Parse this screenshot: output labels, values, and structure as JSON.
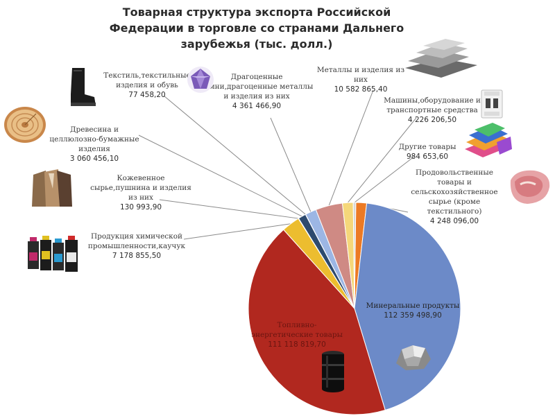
{
  "chart_data": {
    "type": "pie",
    "title": "Товарная структура экспорта Российской Федерации в торговле со странами Дальнего зарубежья (тыс. долл.)",
    "slices": [
      {
        "label": "Продовольственные товары и сельскохозяйственное сырье (кроме текстильного)",
        "value": 4248096.0,
        "value_text": "4 248 096,00",
        "color": "#ec7a24"
      },
      {
        "label": "Минеральные продукты",
        "value": 112359498.9,
        "value_text": "112 359 498,90",
        "color": "#6c8ac8"
      },
      {
        "label": "Топливно-энергетические товары",
        "value": 111118819.7,
        "value_text": "111 118 819,70",
        "color": "#b1281f"
      },
      {
        "label": "Продукция химической промышленности,каучук",
        "value": 7178855.5,
        "value_text": "7 178 855,50",
        "color": "#ecbd2f"
      },
      {
        "label": "Кожевенное сырье,пушнина и изделия из них",
        "value": 130993.9,
        "value_text": "130 993,90",
        "color": "#5f5f5f"
      },
      {
        "label": "Древесина и целлюлозно-бумажные изделия",
        "value": 3060456.1,
        "value_text": "3 060 456,10",
        "color": "#2d4a6e"
      },
      {
        "label": "Текстиль,текстильные изделия и обувь",
        "value": 77458.2,
        "value_text": "77 458,20",
        "color": "#7a2a22"
      },
      {
        "label": "Драгоценные камни,драгоценные металлы и изделия из них",
        "value": 4361466.9,
        "value_text": "4 361 466,90",
        "color": "#9cb6e4"
      },
      {
        "label": "Металлы и изделия из них",
        "value": 10582865.4,
        "value_text": "10 582 865,40",
        "color": "#cf8a84"
      },
      {
        "label": "Машины,оборудование и транспортные средства",
        "value": 4226206.5,
        "value_text": "4 226 206,50",
        "color": "#f5d77a"
      },
      {
        "label": "Другие товары",
        "value": 984653.6,
        "value_text": "984 653,60",
        "color": "#d7d7d7"
      }
    ]
  },
  "icons": [
    "wood-log-icon",
    "boot-icon",
    "gemstone-icon",
    "metal-ingots-icon",
    "circuit-breaker-icon",
    "colored-fabric-icon",
    "meat-icon",
    "fur-coats-icon",
    "chemical-bottles-icon",
    "mineral-rock-icon",
    "oil-barrel-icon"
  ]
}
